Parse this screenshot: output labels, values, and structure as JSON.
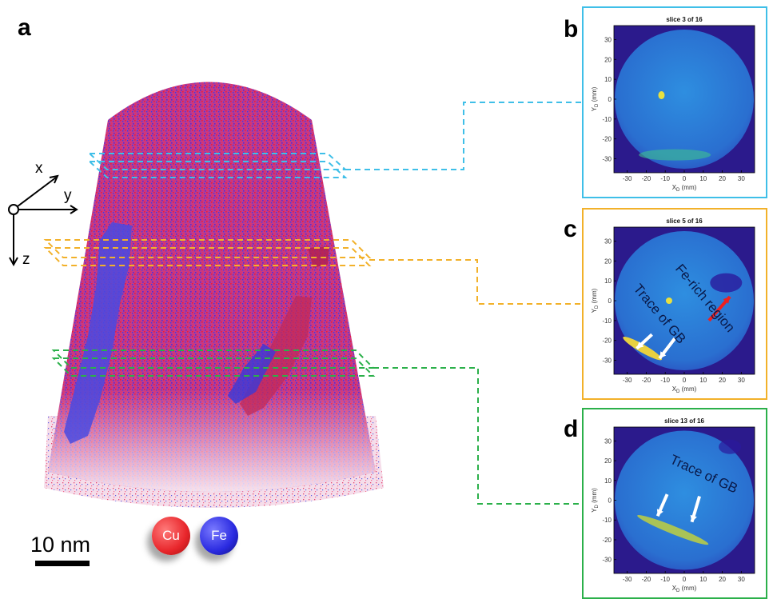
{
  "panels": {
    "a": {
      "letter": "a"
    },
    "b": {
      "letter": "b",
      "slice_title": "slice 3 of 16"
    },
    "c": {
      "letter": "c",
      "slice_title": "slice 5 of 16",
      "annotation_fe": "Fe-rich region",
      "annotation_gb": "Trace of GB"
    },
    "d": {
      "letter": "d",
      "slice_title": "slice 13 of 16",
      "annotation_gb": "Trace of GB"
    }
  },
  "axes": {
    "x_label": "X",
    "y_label": "Y",
    "sub": "D",
    "unit": "(mm)",
    "x_ticks": [
      "-30",
      "-20",
      "-10",
      "0",
      "10",
      "20",
      "30"
    ],
    "y_ticks": [
      "30",
      "20",
      "10",
      "0",
      "-10",
      "-20",
      "-30"
    ]
  },
  "coordinate_axes": {
    "x": "x",
    "y": "y",
    "z": "z"
  },
  "legend": {
    "cu": "Cu",
    "fe": "Fe",
    "cu_color": "#e8262b",
    "fe_color": "#2a2ae0"
  },
  "scale_bar": {
    "label": "10 nm"
  },
  "colors": {
    "slice_b": "#3fbfe8",
    "slice_c": "#f2b12a",
    "slice_d": "#2bb04a",
    "detector_bg": "#2b1a8c",
    "detector_fill": "#2a7ad6"
  }
}
